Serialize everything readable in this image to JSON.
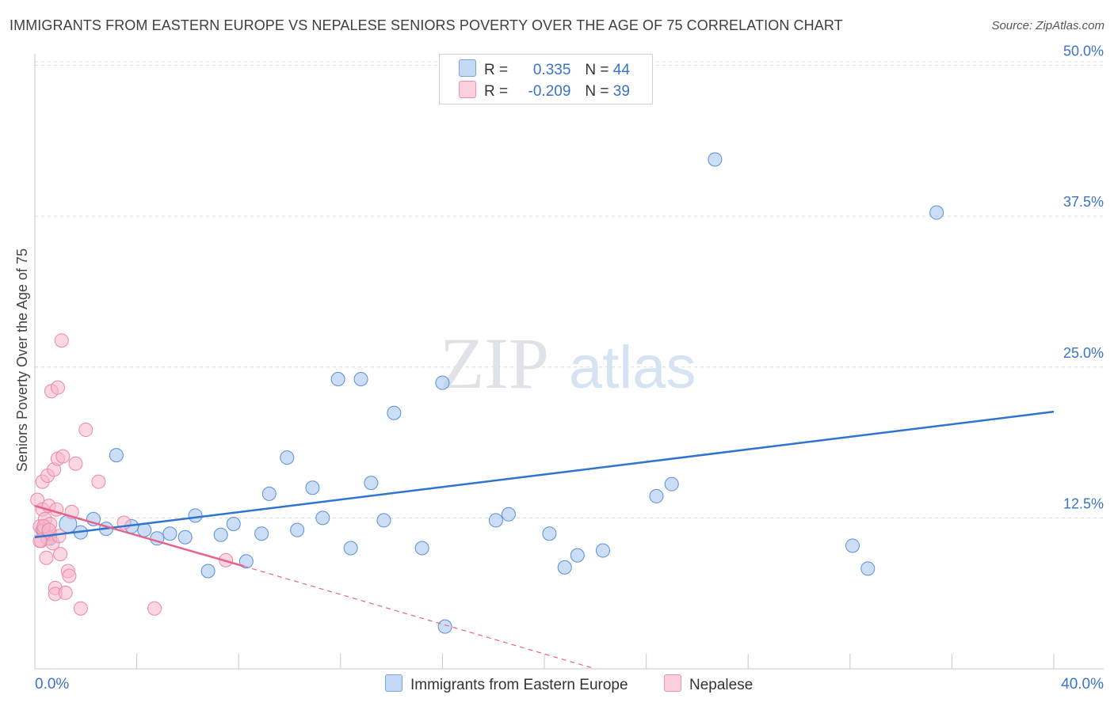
{
  "title": "IMMIGRANTS FROM EASTERN EUROPE VS NEPALESE SENIORS POVERTY OVER THE AGE OF 75 CORRELATION CHART",
  "source": "Source: ZipAtlas.com",
  "watermark": {
    "zip": "ZIP",
    "atlas": "atlas"
  },
  "legend": {
    "r_label": "R =",
    "n_label": "N =",
    "series1": {
      "r": "0.335",
      "n": "44"
    },
    "series2": {
      "r": "-0.209",
      "n": "39"
    }
  },
  "chart_data": {
    "type": "scatter",
    "title": "IMMIGRANTS FROM EASTERN EUROPE VS NEPALESE SENIORS POVERTY OVER THE AGE OF 75 CORRELATION CHART",
    "xlabel": "",
    "ylabel": "Seniors Poverty Over the Age of 75",
    "xlim": [
      0,
      40
    ],
    "ylim": [
      0,
      52
    ],
    "x_tick_labels": [
      "0.0%",
      "40.0%"
    ],
    "y_ticks": [
      12.5,
      25.0,
      37.5,
      50.0
    ],
    "y_tick_labels": [
      "12.5%",
      "25.0%",
      "37.5%",
      "50.0%"
    ],
    "colors": {
      "series1_fill": "#a9c8f0",
      "series1_line": "#2f74d0",
      "series2_fill": "#f7b6ca",
      "series2_line": "#e8628e",
      "tick_label": "#3a73c8"
    },
    "series": [
      {
        "name": "Immigrants from Eastern Europe",
        "trend": {
          "x": [
            0,
            40
          ],
          "y": [
            10.9,
            21.3
          ]
        },
        "points": [
          [
            0.3,
            11.5
          ],
          [
            0.6,
            10.8
          ],
          [
            1.3,
            12.0
          ],
          [
            1.8,
            11.3
          ],
          [
            2.3,
            12.4
          ],
          [
            2.8,
            11.6
          ],
          [
            3.2,
            17.7
          ],
          [
            3.8,
            11.8
          ],
          [
            4.3,
            11.5
          ],
          [
            4.8,
            10.8
          ],
          [
            5.3,
            11.2
          ],
          [
            5.9,
            10.9
          ],
          [
            6.3,
            12.7
          ],
          [
            6.8,
            8.1
          ],
          [
            7.3,
            11.1
          ],
          [
            7.8,
            12.0
          ],
          [
            8.3,
            8.9
          ],
          [
            8.9,
            11.2
          ],
          [
            9.2,
            14.5
          ],
          [
            9.9,
            17.5
          ],
          [
            10.3,
            11.5
          ],
          [
            10.9,
            15.0
          ],
          [
            11.3,
            12.5
          ],
          [
            11.9,
            24.0
          ],
          [
            12.4,
            10.0
          ],
          [
            12.8,
            24.0
          ],
          [
            13.2,
            15.4
          ],
          [
            13.7,
            12.3
          ],
          [
            14.1,
            21.2
          ],
          [
            15.2,
            10.0
          ],
          [
            16.0,
            23.7
          ],
          [
            16.1,
            3.5
          ],
          [
            18.1,
            12.3
          ],
          [
            18.6,
            12.8
          ],
          [
            20.2,
            11.2
          ],
          [
            20.8,
            8.4
          ],
          [
            21.3,
            9.4
          ],
          [
            22.3,
            9.8
          ],
          [
            24.4,
            14.3
          ],
          [
            25.0,
            15.3
          ],
          [
            26.7,
            42.2
          ],
          [
            32.1,
            10.2
          ],
          [
            32.7,
            8.3
          ],
          [
            35.4,
            37.8
          ]
        ]
      },
      {
        "name": "Nepalese",
        "trend": {
          "x": [
            0,
            8.2
          ],
          "y": [
            13.5,
            8.5
          ]
        },
        "trend_extension": {
          "x": [
            8.2,
            22.0
          ],
          "y": [
            8.5,
            0.0
          ]
        },
        "points": [
          [
            0.1,
            14.0
          ],
          [
            0.2,
            11.8
          ],
          [
            0.25,
            10.6
          ],
          [
            0.3,
            13.2
          ],
          [
            0.3,
            15.5
          ],
          [
            0.35,
            11.5
          ],
          [
            0.4,
            12.4
          ],
          [
            0.45,
            9.2
          ],
          [
            0.5,
            16.0
          ],
          [
            0.5,
            10.8
          ],
          [
            0.55,
            13.5
          ],
          [
            0.6,
            11.2
          ],
          [
            0.6,
            12.0
          ],
          [
            0.65,
            23.0
          ],
          [
            0.7,
            10.4
          ],
          [
            0.75,
            16.5
          ],
          [
            0.8,
            6.7
          ],
          [
            0.8,
            6.2
          ],
          [
            0.85,
            13.2
          ],
          [
            0.9,
            17.4
          ],
          [
            0.9,
            23.3
          ],
          [
            0.95,
            11.0
          ],
          [
            1.0,
            9.5
          ],
          [
            1.05,
            27.2
          ],
          [
            1.1,
            17.6
          ],
          [
            1.2,
            6.3
          ],
          [
            1.3,
            8.1
          ],
          [
            1.35,
            7.7
          ],
          [
            1.45,
            13.0
          ],
          [
            1.6,
            17.0
          ],
          [
            1.8,
            5.0
          ],
          [
            2.0,
            19.8
          ],
          [
            2.5,
            15.5
          ],
          [
            3.5,
            12.1
          ],
          [
            4.7,
            5.0
          ],
          [
            7.5,
            9.0
          ],
          [
            0.2,
            10.6
          ],
          [
            0.35,
            11.8
          ],
          [
            0.55,
            11.5
          ]
        ]
      }
    ]
  },
  "bottom_legend": {
    "series1_label": "Immigrants from Eastern Europe",
    "series2_label": "Nepalese"
  }
}
